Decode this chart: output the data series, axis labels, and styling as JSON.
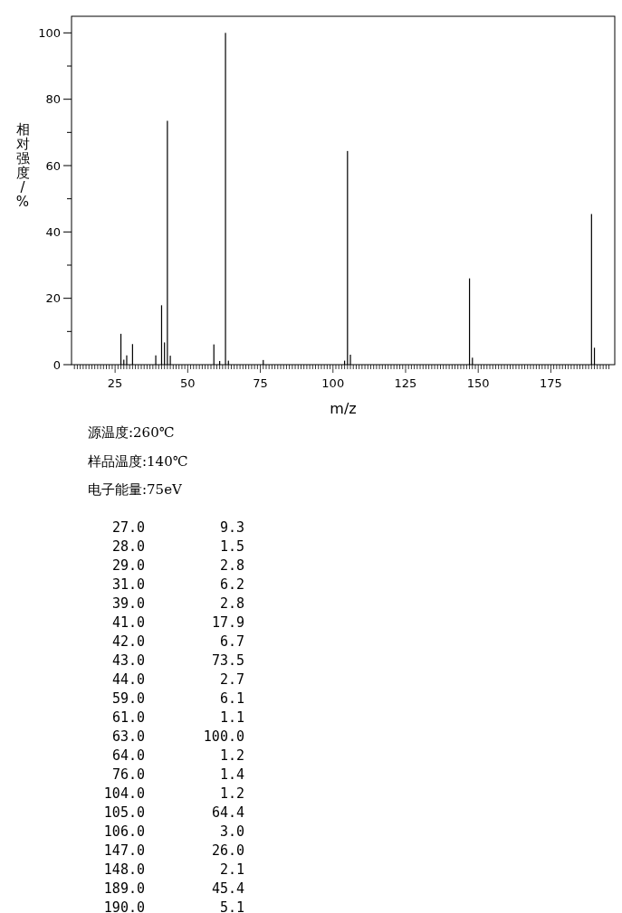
{
  "chart_data": {
    "type": "bar",
    "xlabel": "m/z",
    "ylabel": "相对强度/%",
    "x": [
      27,
      28,
      29,
      31,
      39,
      41,
      42,
      43,
      44,
      59,
      61,
      63,
      64,
      76,
      104,
      105,
      106,
      147,
      148,
      189,
      190
    ],
    "values": [
      9.3,
      1.5,
      2.8,
      6.2,
      2.8,
      17.9,
      6.7,
      73.5,
      2.7,
      6.1,
      1.1,
      100.0,
      1.2,
      1.4,
      1.2,
      64.4,
      3.0,
      26.0,
      2.1,
      45.4,
      5.1
    ],
    "color": "#000000",
    "xlim": [
      10,
      197
    ],
    "ylim": [
      0,
      105
    ],
    "yticks": [
      0,
      {
        "value": 10,
        "label": null
      },
      20,
      {
        "value": 30,
        "label": null
      },
      40,
      {
        "value": 50,
        "label": null
      },
      60,
      {
        "value": 70,
        "label": null
      },
      80,
      {
        "value": 90,
        "label": null
      },
      100
    ],
    "xticks": [
      {
        "value": 11,
        "label": null
      },
      {
        "value": 12,
        "label": null
      },
      {
        "value": 13,
        "label": null
      },
      {
        "value": 14,
        "label": null
      },
      {
        "value": 15,
        "label": null
      },
      {
        "value": 16,
        "label": null
      },
      {
        "value": 17,
        "label": null
      },
      {
        "value": 18,
        "label": null
      },
      {
        "value": 19,
        "label": null
      },
      {
        "value": 20,
        "label": null
      },
      {
        "value": 21,
        "label": null
      },
      {
        "value": 22,
        "label": null
      },
      {
        "value": 23,
        "label": null
      },
      {
        "value": 24,
        "label": null
      },
      25,
      {
        "value": 26,
        "label": null
      },
      {
        "value": 27,
        "label": null
      },
      {
        "value": 28,
        "label": null
      },
      {
        "value": 29,
        "label": null
      },
      {
        "value": 30,
        "label": null
      },
      {
        "value": 31,
        "label": null
      },
      {
        "value": 32,
        "label": null
      },
      {
        "value": 33,
        "label": null
      },
      {
        "value": 34,
        "label": null
      },
      {
        "value": 35,
        "label": null
      },
      {
        "value": 36,
        "label": null
      },
      {
        "value": 37,
        "label": null
      },
      {
        "value": 38,
        "label": null
      },
      {
        "value": 39,
        "label": null
      },
      {
        "value": 40,
        "label": null
      },
      {
        "value": 41,
        "label": null
      },
      {
        "value": 42,
        "label": null
      },
      {
        "value": 43,
        "label": null
      },
      {
        "value": 44,
        "label": null
      },
      {
        "value": 45,
        "label": null
      },
      {
        "value": 46,
        "label": null
      },
      {
        "value": 47,
        "label": null
      },
      {
        "value": 48,
        "label": null
      },
      {
        "value": 49,
        "label": null
      },
      50,
      {
        "value": 51,
        "label": null
      },
      {
        "value": 52,
        "label": null
      },
      {
        "value": 53,
        "label": null
      },
      {
        "value": 54,
        "label": null
      },
      {
        "value": 55,
        "label": null
      },
      {
        "value": 56,
        "label": null
      },
      {
        "value": 57,
        "label": null
      },
      {
        "value": 58,
        "label": null
      },
      {
        "value": 59,
        "label": null
      },
      {
        "value": 60,
        "label": null
      },
      {
        "value": 61,
        "label": null
      },
      {
        "value": 62,
        "label": null
      },
      {
        "value": 63,
        "label": null
      },
      {
        "value": 64,
        "label": null
      },
      {
        "value": 65,
        "label": null
      },
      {
        "value": 66,
        "label": null
      },
      {
        "value": 67,
        "label": null
      },
      {
        "value": 68,
        "label": null
      },
      {
        "value": 69,
        "label": null
      },
      {
        "value": 70,
        "label": null
      },
      {
        "value": 71,
        "label": null
      },
      {
        "value": 72,
        "label": null
      },
      {
        "value": 73,
        "label": null
      },
      {
        "value": 74,
        "label": null
      },
      75,
      {
        "value": 76,
        "label": null
      },
      {
        "value": 77,
        "label": null
      },
      {
        "value": 78,
        "label": null
      },
      {
        "value": 79,
        "label": null
      },
      {
        "value": 80,
        "label": null
      },
      {
        "value": 81,
        "label": null
      },
      {
        "value": 82,
        "label": null
      },
      {
        "value": 83,
        "label": null
      },
      {
        "value": 84,
        "label": null
      },
      {
        "value": 85,
        "label": null
      },
      {
        "value": 86,
        "label": null
      },
      {
        "value": 87,
        "label": null
      },
      {
        "value": 88,
        "label": null
      },
      {
        "value": 89,
        "label": null
      },
      {
        "value": 90,
        "label": null
      },
      {
        "value": 91,
        "label": null
      },
      {
        "value": 92,
        "label": null
      },
      {
        "value": 93,
        "label": null
      },
      {
        "value": 94,
        "label": null
      },
      {
        "value": 95,
        "label": null
      },
      {
        "value": 96,
        "label": null
      },
      {
        "value": 97,
        "label": null
      },
      {
        "value": 98,
        "label": null
      },
      {
        "value": 99,
        "label": null
      },
      100,
      {
        "value": 101,
        "label": null
      },
      {
        "value": 102,
        "label": null
      },
      {
        "value": 103,
        "label": null
      },
      {
        "value": 104,
        "label": null
      },
      {
        "value": 105,
        "label": null
      },
      {
        "value": 106,
        "label": null
      },
      {
        "value": 107,
        "label": null
      },
      {
        "value": 108,
        "label": null
      },
      {
        "value": 109,
        "label": null
      },
      {
        "value": 110,
        "label": null
      },
      {
        "value": 111,
        "label": null
      },
      {
        "value": 112,
        "label": null
      },
      {
        "value": 113,
        "label": null
      },
      {
        "value": 114,
        "label": null
      },
      {
        "value": 115,
        "label": null
      },
      {
        "value": 116,
        "label": null
      },
      {
        "value": 117,
        "label": null
      },
      {
        "value": 118,
        "label": null
      },
      {
        "value": 119,
        "label": null
      },
      {
        "value": 120,
        "label": null
      },
      {
        "value": 121,
        "label": null
      },
      {
        "value": 122,
        "label": null
      },
      {
        "value": 123,
        "label": null
      },
      {
        "value": 124,
        "label": null
      },
      125,
      {
        "value": 126,
        "label": null
      },
      {
        "value": 127,
        "label": null
      },
      {
        "value": 128,
        "label": null
      },
      {
        "value": 129,
        "label": null
      },
      {
        "value": 130,
        "label": null
      },
      {
        "value": 131,
        "label": null
      },
      {
        "value": 132,
        "label": null
      },
      {
        "value": 133,
        "label": null
      },
      {
        "value": 134,
        "label": null
      },
      {
        "value": 135,
        "label": null
      },
      {
        "value": 136,
        "label": null
      },
      {
        "value": 137,
        "label": null
      },
      {
        "value": 138,
        "label": null
      },
      {
        "value": 139,
        "label": null
      },
      {
        "value": 140,
        "label": null
      },
      {
        "value": 141,
        "label": null
      },
      {
        "value": 142,
        "label": null
      },
      {
        "value": 143,
        "label": null
      },
      {
        "value": 144,
        "label": null
      },
      {
        "value": 145,
        "label": null
      },
      {
        "value": 146,
        "label": null
      },
      {
        "value": 147,
        "label": null
      },
      {
        "value": 148,
        "label": null
      },
      {
        "value": 149,
        "label": null
      },
      150,
      {
        "value": 151,
        "label": null
      },
      {
        "value": 152,
        "label": null
      },
      {
        "value": 153,
        "label": null
      },
      {
        "value": 154,
        "label": null
      },
      {
        "value": 155,
        "label": null
      },
      {
        "value": 156,
        "label": null
      },
      {
        "value": 157,
        "label": null
      },
      {
        "value": 158,
        "label": null
      },
      {
        "value": 159,
        "label": null
      },
      {
        "value": 160,
        "label": null
      },
      {
        "value": 161,
        "label": null
      },
      {
        "value": 162,
        "label": null
      },
      {
        "value": 163,
        "label": null
      },
      {
        "value": 164,
        "label": null
      },
      {
        "value": 165,
        "label": null
      },
      {
        "value": 166,
        "label": null
      },
      {
        "value": 167,
        "label": null
      },
      {
        "value": 168,
        "label": null
      },
      {
        "value": 169,
        "label": null
      },
      {
        "value": 170,
        "label": null
      },
      {
        "value": 171,
        "label": null
      },
      {
        "value": 172,
        "label": null
      },
      {
        "value": 173,
        "label": null
      },
      {
        "value": 174,
        "label": null
      },
      175,
      {
        "value": 176,
        "label": null
      },
      {
        "value": 177,
        "label": null
      },
      {
        "value": 178,
        "label": null
      },
      {
        "value": 179,
        "label": null
      },
      {
        "value": 180,
        "label": null
      },
      {
        "value": 181,
        "label": null
      },
      {
        "value": 182,
        "label": null
      },
      {
        "value": 183,
        "label": null
      },
      {
        "value": 184,
        "label": null
      },
      {
        "value": 185,
        "label": null
      },
      {
        "value": 186,
        "label": null
      },
      {
        "value": 187,
        "label": null
      },
      {
        "value": 188,
        "label": null
      },
      {
        "value": 189,
        "label": null
      },
      {
        "value": 190,
        "label": null
      },
      {
        "value": 191,
        "label": null
      },
      {
        "value": 192,
        "label": null
      },
      {
        "value": 193,
        "label": null
      },
      {
        "value": 194,
        "label": null
      },
      {
        "value": 195,
        "label": null
      }
    ],
    "annotations": [
      "源温度:260℃",
      "样品温度:140℃",
      "电子能量:75eV",
      "27.0",
      "9.3",
      "28.0",
      "1.5",
      "29.0",
      "2.8",
      "31.0",
      "6.2",
      "39.0",
      "2.8",
      "41.0",
      "17.9",
      "42.0",
      "6.7",
      "43.0",
      "73.5",
      "44.0",
      "2.7",
      "59.0",
      "6.1",
      "61.0",
      "1.1",
      "63.0",
      "100.0",
      "64.0",
      "1.2",
      "76.0",
      "1.4",
      "104.0",
      "1.2",
      "105.0",
      "64.4",
      "106.0",
      "3.0",
      "147.0",
      "26.0",
      "148.0",
      "2.1",
      "189.0",
      "45.4",
      "190.0",
      "5.1"
    ]
  }
}
